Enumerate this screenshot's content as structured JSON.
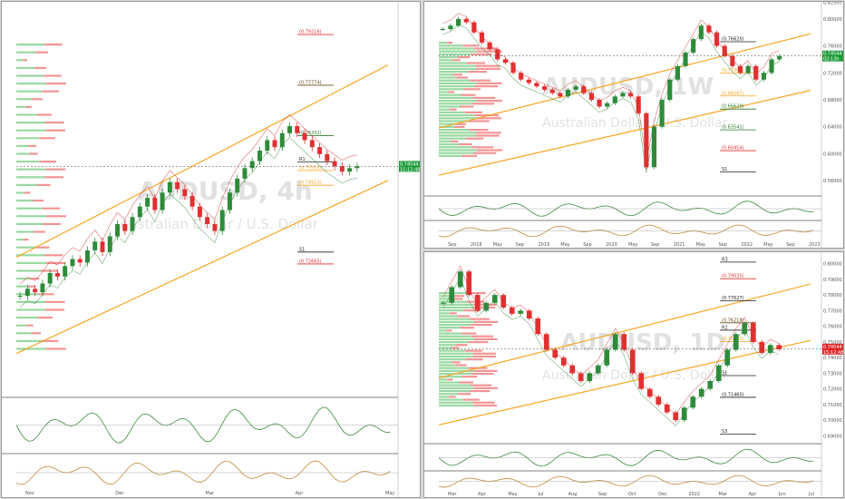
{
  "colors": {
    "up": "#2e8b3a",
    "down": "#e03030",
    "channel": "#f5a623",
    "violet": "#d67ee0",
    "green_line": "#3a8a3a",
    "red_line": "#d23030",
    "price_tag": "#1e9c3a",
    "price_tag_red": "#e02424",
    "dark": "#222222",
    "vol_green": "#7fd08a",
    "vol_red": "#f07a7a"
  },
  "icons": [
    "settings-icon",
    "scale-icon",
    "trend-arrow-icon"
  ],
  "chart_data": [
    {
      "id": "left",
      "type": "candlestick",
      "watermark": "AUDUSD, 4h",
      "subtitle": "Australian Dollar / U.S. Dollar",
      "ylim": [
        0.69,
        0.8
      ],
      "price": [
        0.7175,
        0.7195,
        0.7185,
        0.721,
        0.724,
        0.723,
        0.726,
        0.728,
        0.727,
        0.7305,
        0.733,
        0.73,
        0.7345,
        0.738,
        0.736,
        0.74,
        0.743,
        0.7455,
        0.742,
        0.747,
        0.75,
        0.748,
        0.746,
        0.743,
        0.74,
        0.738,
        0.736,
        0.742,
        0.747,
        0.751,
        0.754,
        0.756,
        0.759,
        0.762,
        0.76,
        0.764,
        0.766,
        0.764,
        0.762,
        0.76,
        0.758,
        0.756,
        0.7545,
        0.753,
        0.754,
        0.7545
      ],
      "levels": [
        {
          "label": "(0.79216)",
          "value": 0.7922,
          "color": "#e03030"
        },
        {
          "label": "(0.77774)",
          "value": 0.7777,
          "color": "#6b4a1e"
        },
        {
          "label": "(0.76332)",
          "value": 0.7633,
          "color": "#2e7a2e"
        },
        {
          "label": "(0.75333)",
          "value": 0.7533,
          "color": "#f5a623"
        },
        {
          "label": "(0.74913)",
          "value": 0.7491,
          "color": "#f5a623"
        },
        {
          "label": "R1",
          "value": 0.7558,
          "color": "#222222"
        },
        {
          "label": "S1",
          "value": 0.73,
          "color": "#222222"
        },
        {
          "label": "(0.72665)",
          "value": 0.7266,
          "color": "#e03030"
        }
      ],
      "price_tag": [
        "0.74544",
        "15:12:48"
      ],
      "x_labels": [
        "Nov",
        "Dec",
        "Mar",
        "Apr",
        "May"
      ]
    },
    {
      "id": "top-right",
      "type": "candlestick",
      "watermark": "AUDUSD, 1W",
      "subtitle": "Australian Dollar / U.S. Dollar",
      "ylim": [
        0.54,
        0.82
      ],
      "price": [
        0.785,
        0.79,
        0.8,
        0.795,
        0.78,
        0.765,
        0.755,
        0.74,
        0.735,
        0.72,
        0.71,
        0.705,
        0.7,
        0.695,
        0.69,
        0.685,
        0.695,
        0.7,
        0.69,
        0.68,
        0.67,
        0.675,
        0.685,
        0.69,
        0.685,
        0.66,
        0.58,
        0.64,
        0.68,
        0.71,
        0.73,
        0.75,
        0.77,
        0.79,
        0.78,
        0.76,
        0.745,
        0.73,
        0.72,
        0.73,
        0.71,
        0.72,
        0.74,
        0.745
      ],
      "levels": [
        {
          "label": "(0.76620)",
          "value": 0.7662,
          "color": "#222222"
        },
        {
          "label": "(0.71966)",
          "value": 0.7197,
          "color": "#f5a623"
        },
        {
          "label": "(0.68567)",
          "value": 0.6857,
          "color": "#f5a623"
        },
        {
          "label": "(0.66629)",
          "value": 0.6663,
          "color": "#2e7a2e"
        },
        {
          "label": "(0.63541)",
          "value": 0.6354,
          "color": "#2e7a2e"
        },
        {
          "label": "(0.60454)",
          "value": 0.6045,
          "color": "#e03030"
        },
        {
          "label": "S1",
          "value": 0.573,
          "color": "#222222"
        }
      ],
      "y_labels": [
        "0.82500",
        "0.80000",
        "0.76000",
        "0.72000",
        "0.68000",
        "0.64000",
        "0.60000",
        "0.56000"
      ],
      "price_tag": [
        "0.74544",
        "02:13h"
      ],
      "x_labels": [
        "Sep",
        "2018",
        "May",
        "Sep",
        "2019",
        "May",
        "Sep",
        "2020",
        "May",
        "Sep",
        "2021",
        "May",
        "Sep",
        "2022",
        "May",
        "Sep",
        "2023"
      ]
    },
    {
      "id": "bottom-right",
      "type": "candlestick",
      "watermark": "AUDUSD, 1D",
      "subtitle": "Australian Dollar / U.S. Dollar",
      "ylim": [
        0.685,
        0.805
      ],
      "price": [
        0.775,
        0.785,
        0.795,
        0.78,
        0.77,
        0.775,
        0.78,
        0.772,
        0.768,
        0.77,
        0.765,
        0.755,
        0.745,
        0.74,
        0.735,
        0.73,
        0.725,
        0.73,
        0.735,
        0.745,
        0.755,
        0.745,
        0.73,
        0.72,
        0.715,
        0.71,
        0.705,
        0.7,
        0.708,
        0.715,
        0.72,
        0.725,
        0.735,
        0.745,
        0.755,
        0.762,
        0.75,
        0.743,
        0.748,
        0.7454
      ],
      "levels": [
        {
          "label": "R3",
          "value": 0.801,
          "color": "#222222"
        },
        {
          "label": "(0.79035)",
          "value": 0.7904,
          "color": "#e03030"
        },
        {
          "label": "(0.77627)",
          "value": 0.7763,
          "color": "#222222"
        },
        {
          "label": "(0.76218)",
          "value": 0.7622,
          "color": "#6b4a1e"
        },
        {
          "label": "R2",
          "value": 0.7575,
          "color": "#222222"
        },
        {
          "label": "(0.75030)",
          "value": 0.7503,
          "color": "#f5a623"
        },
        {
          "label": "S1",
          "value": 0.7285,
          "color": "#222222"
        },
        {
          "label": "(0.71460)",
          "value": 0.7146,
          "color": "#222222"
        },
        {
          "label": "S3",
          "value": 0.691,
          "color": "#222222"
        }
      ],
      "y_labels": [
        "0.80000",
        "0.79000",
        "0.78000",
        "0.77000",
        "0.76000",
        "0.75000",
        "0.74000",
        "0.73000",
        "0.72000",
        "0.71000",
        "0.70000",
        "0.69000"
      ],
      "price_tag": [
        "0.74544",
        "15:12:48"
      ],
      "x_labels": [
        "Mar",
        "Apr",
        "May",
        "Jul",
        "Aug",
        "Sep",
        "Oct",
        "Dec",
        "2022",
        "Mar",
        "Apr",
        "Jun",
        "Jul"
      ]
    }
  ]
}
